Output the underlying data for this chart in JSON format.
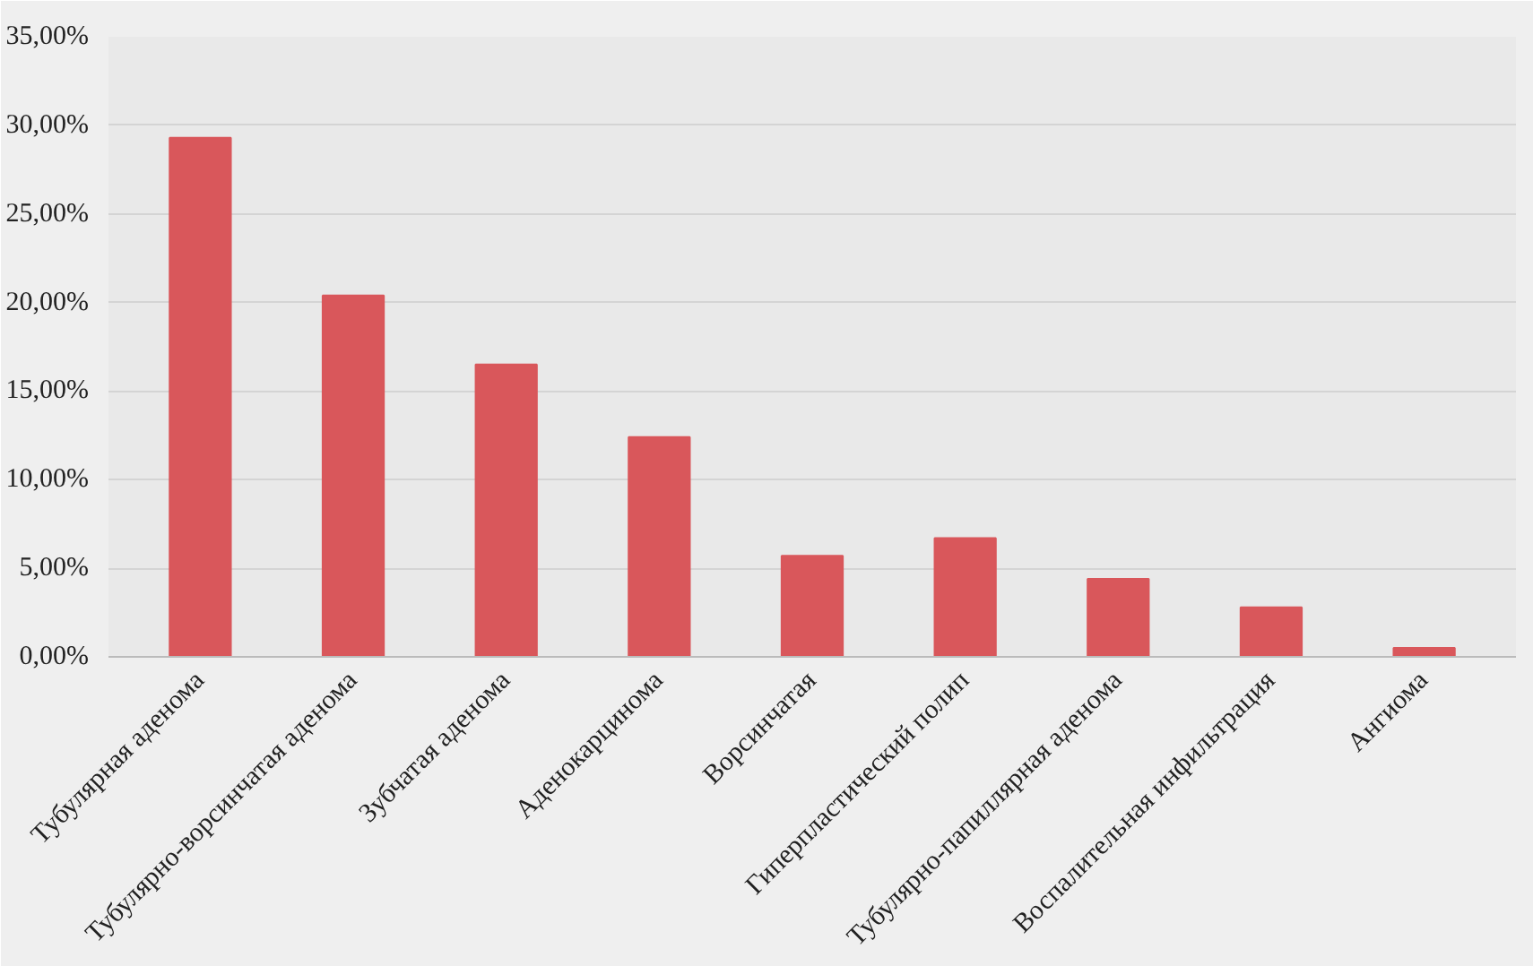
{
  "chart_data": {
    "type": "bar",
    "categories": [
      "Тубулярная аденома",
      "Тубулярно-ворсинчатая аденома",
      "Зубчатая аденома",
      "Аденокарцинома",
      "Ворсинчатая",
      "Гиперпластический полип",
      "Тубулярно-папиллярная аденома",
      "Воспалительная инфильтрация",
      "Ангиома"
    ],
    "values": [
      29.3,
      20.4,
      16.5,
      12.4,
      5.7,
      6.7,
      4.4,
      2.8,
      0.5
    ],
    "color": "#d9575b",
    "ylim": [
      0,
      35
    ],
    "yticks": [
      {
        "value": 0,
        "label": "0,00%"
      },
      {
        "value": 5,
        "label": "5,00%"
      },
      {
        "value": 10,
        "label": "10,00%"
      },
      {
        "value": 15,
        "label": "15,00%"
      },
      {
        "value": 20,
        "label": "20,00%"
      },
      {
        "value": 25,
        "label": "25,00%"
      },
      {
        "value": 30,
        "label": "30,00%"
      },
      {
        "value": 35,
        "label": "35,00%"
      }
    ],
    "grid": "y"
  }
}
